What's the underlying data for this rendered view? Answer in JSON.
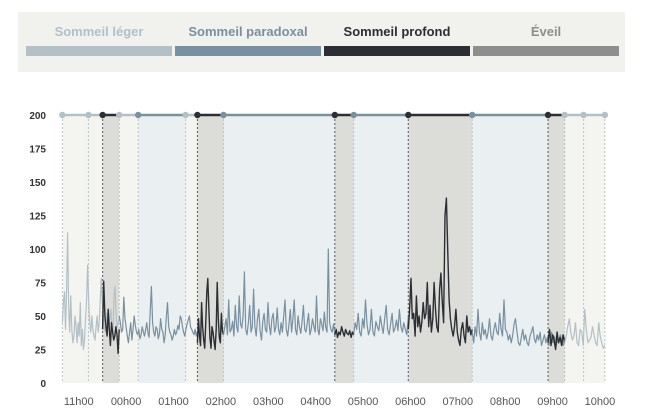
{
  "chart_data": {
    "type": "line",
    "title": "",
    "xlabel": "",
    "ylabel": "",
    "ylim": [
      0,
      200
    ],
    "yticks": [
      "0",
      "25",
      "50",
      "75",
      "100",
      "125",
      "150",
      "175",
      "200"
    ],
    "xticks": [
      "11h00",
      "00h00",
      "01h00",
      "02h00",
      "03h00",
      "04h00",
      "05h00",
      "06h00",
      "07h00",
      "08h00",
      "09h00",
      "10h00"
    ],
    "xrange_hours": [
      -1.1,
      10.55
    ],
    "grid": "vertical-dotted",
    "legend_position": "top",
    "legend": [
      {
        "name": "Sommeil léger",
        "color": "#b3c1c6"
      },
      {
        "name": "Sommeil paradoxal",
        "color": "#7990a0"
      },
      {
        "name": "Sommeil profond",
        "color": "#2b2f33"
      },
      {
        "name": "Éveil",
        "color": "#8e8e8e"
      }
    ],
    "stages": [
      {
        "stage": "light",
        "start": -1.05,
        "end": -0.5
      },
      {
        "stage": "light",
        "start": -0.5,
        "end": -0.2
      },
      {
        "stage": "deep",
        "start": -0.2,
        "end": 0.15
      },
      {
        "stage": "light",
        "start": 0.15,
        "end": 0.55
      },
      {
        "stage": "paradoxal",
        "start": 0.55,
        "end": 1.55
      },
      {
        "stage": "light",
        "start": 1.55,
        "end": 1.8
      },
      {
        "stage": "deep",
        "start": 1.8,
        "end": 2.35
      },
      {
        "stage": "paradoxal",
        "start": 2.35,
        "end": 4.7
      },
      {
        "stage": "deep",
        "start": 4.7,
        "end": 5.1
      },
      {
        "stage": "paradoxal",
        "start": 5.1,
        "end": 6.25
      },
      {
        "stage": "deep",
        "start": 6.25,
        "end": 7.6
      },
      {
        "stage": "paradoxal",
        "start": 7.6,
        "end": 9.2
      },
      {
        "stage": "deep",
        "start": 9.2,
        "end": 9.55
      },
      {
        "stage": "light",
        "start": 9.55,
        "end": 9.95
      },
      {
        "stage": "light",
        "start": 9.95,
        "end": 10.4
      }
    ],
    "series": [
      {
        "stage": "light",
        "start": -1.05,
        "end": 0.15,
        "values": [
          45,
          60,
          68,
          40,
          70,
          112,
          55,
          38,
          65,
          40,
          30,
          35,
          50,
          42,
          30,
          45,
          35,
          60,
          28,
          40,
          25,
          32,
          48,
          62,
          88,
          60,
          45,
          38,
          50,
          40,
          35,
          32,
          42,
          50,
          38,
          45,
          62,
          78,
          60,
          50,
          40,
          38,
          52,
          45,
          42,
          48,
          55,
          40,
          38,
          65,
          72,
          50,
          42,
          45,
          48
        ]
      },
      {
        "stage": "deep",
        "start": -0.2,
        "end": 0.15,
        "values": [
          40,
          76,
          50,
          42,
          35,
          55,
          40,
          28,
          45,
          38,
          32,
          35,
          42,
          36,
          22,
          40
        ]
      },
      {
        "stage": "paradoxal",
        "start": 0.15,
        "end": 1.8,
        "values": [
          50,
          45,
          38,
          40,
          64,
          48,
          42,
          35,
          30,
          38,
          45,
          32,
          40,
          50,
          43,
          38,
          36,
          40,
          33,
          36,
          42,
          38,
          35,
          40,
          45,
          37,
          34,
          55,
          72,
          45,
          38,
          35,
          42,
          40,
          33,
          37,
          48,
          40,
          38,
          30,
          36,
          50,
          60,
          42,
          38,
          36,
          32,
          35,
          40,
          36,
          38,
          43,
          40,
          50,
          48,
          42,
          38,
          35,
          40,
          44,
          47,
          50,
          42,
          40,
          38,
          36,
          40,
          35,
          38
        ]
      },
      {
        "stage": "deep",
        "start": 1.8,
        "end": 2.35,
        "values": [
          30,
          48,
          35,
          28,
          60,
          42,
          32,
          26,
          44,
          68,
          78,
          55,
          34,
          26,
          42,
          38,
          31,
          25,
          40,
          75,
          48,
          34,
          30,
          52,
          39,
          36
        ]
      },
      {
        "stage": "paradoxal",
        "start": 2.35,
        "end": 4.7,
        "values": [
          36,
          42,
          48,
          36,
          62,
          38,
          40,
          46,
          35,
          58,
          42,
          38,
          65,
          44,
          41,
          50,
          83,
          40,
          36,
          45,
          58,
          38,
          42,
          70,
          42,
          35,
          48,
          55,
          39,
          32,
          46,
          52,
          40,
          38,
          60,
          43,
          36,
          48,
          52,
          38,
          42,
          56,
          40,
          36,
          45,
          38,
          50,
          62,
          40,
          35,
          44,
          55,
          38,
          48,
          62,
          40,
          36,
          50,
          42,
          37,
          46,
          58,
          40,
          38,
          45,
          52,
          36,
          40,
          48,
          42,
          38,
          65,
          40,
          36,
          48,
          44,
          39,
          53,
          42,
          38,
          100,
          45,
          40,
          38,
          44,
          36
        ]
      },
      {
        "stage": "deep",
        "start": 4.7,
        "end": 5.1,
        "values": [
          36,
          40,
          34,
          38,
          36,
          42,
          38,
          35,
          40,
          37,
          36,
          39,
          34,
          38,
          36
        ]
      },
      {
        "stage": "paradoxal",
        "start": 5.1,
        "end": 6.25,
        "values": [
          37,
          45,
          40,
          52,
          38,
          35,
          48,
          41,
          62,
          44,
          36,
          40,
          55,
          38,
          35,
          46,
          42,
          39,
          50,
          43,
          37,
          48,
          58,
          40,
          36,
          44,
          52,
          38,
          41,
          47,
          39,
          55,
          42,
          38,
          45,
          40,
          36,
          50
        ]
      },
      {
        "stage": "deep",
        "start": 6.25,
        "end": 7.6,
        "values": [
          40,
          55,
          78,
          48,
          52,
          35,
          65,
          42,
          50,
          38,
          46,
          60,
          48,
          52,
          75,
          42,
          58,
          38,
          48,
          75,
          55,
          42,
          38,
          70,
          82,
          60,
          45,
          125,
          138,
          100,
          62,
          48,
          40,
          35,
          42,
          55,
          38,
          32,
          28,
          40,
          45,
          35,
          30,
          50,
          38,
          42,
          36,
          40
        ]
      },
      {
        "stage": "paradoxal",
        "start": 7.6,
        "end": 9.55,
        "values": [
          38,
          30,
          42,
          35,
          55,
          38,
          32,
          45,
          36,
          40,
          33,
          38,
          48,
          35,
          32,
          40,
          45,
          38,
          36,
          52,
          40,
          35,
          62,
          40,
          38,
          32,
          36,
          30,
          35,
          44,
          48,
          38,
          30,
          28,
          34,
          40,
          32,
          36,
          30,
          28,
          35,
          38,
          42,
          33,
          30,
          36,
          32,
          38,
          28,
          32,
          36,
          30,
          34,
          28,
          32,
          38,
          30,
          35,
          27,
          33,
          30,
          36,
          32,
          28,
          34
        ]
      },
      {
        "stage": "deep",
        "start": 9.2,
        "end": 9.55,
        "values": [
          30,
          40,
          28,
          36,
          32,
          25,
          38,
          30,
          34,
          28,
          36,
          30
        ]
      },
      {
        "stage": "light",
        "start": 9.55,
        "end": 10.4,
        "values": [
          30,
          35,
          42,
          48,
          38,
          32,
          35,
          45,
          30,
          28,
          40,
          38,
          28,
          55,
          40,
          30,
          32,
          34,
          42,
          36,
          30,
          28,
          45,
          35,
          30,
          26,
          28
        ]
      }
    ]
  }
}
